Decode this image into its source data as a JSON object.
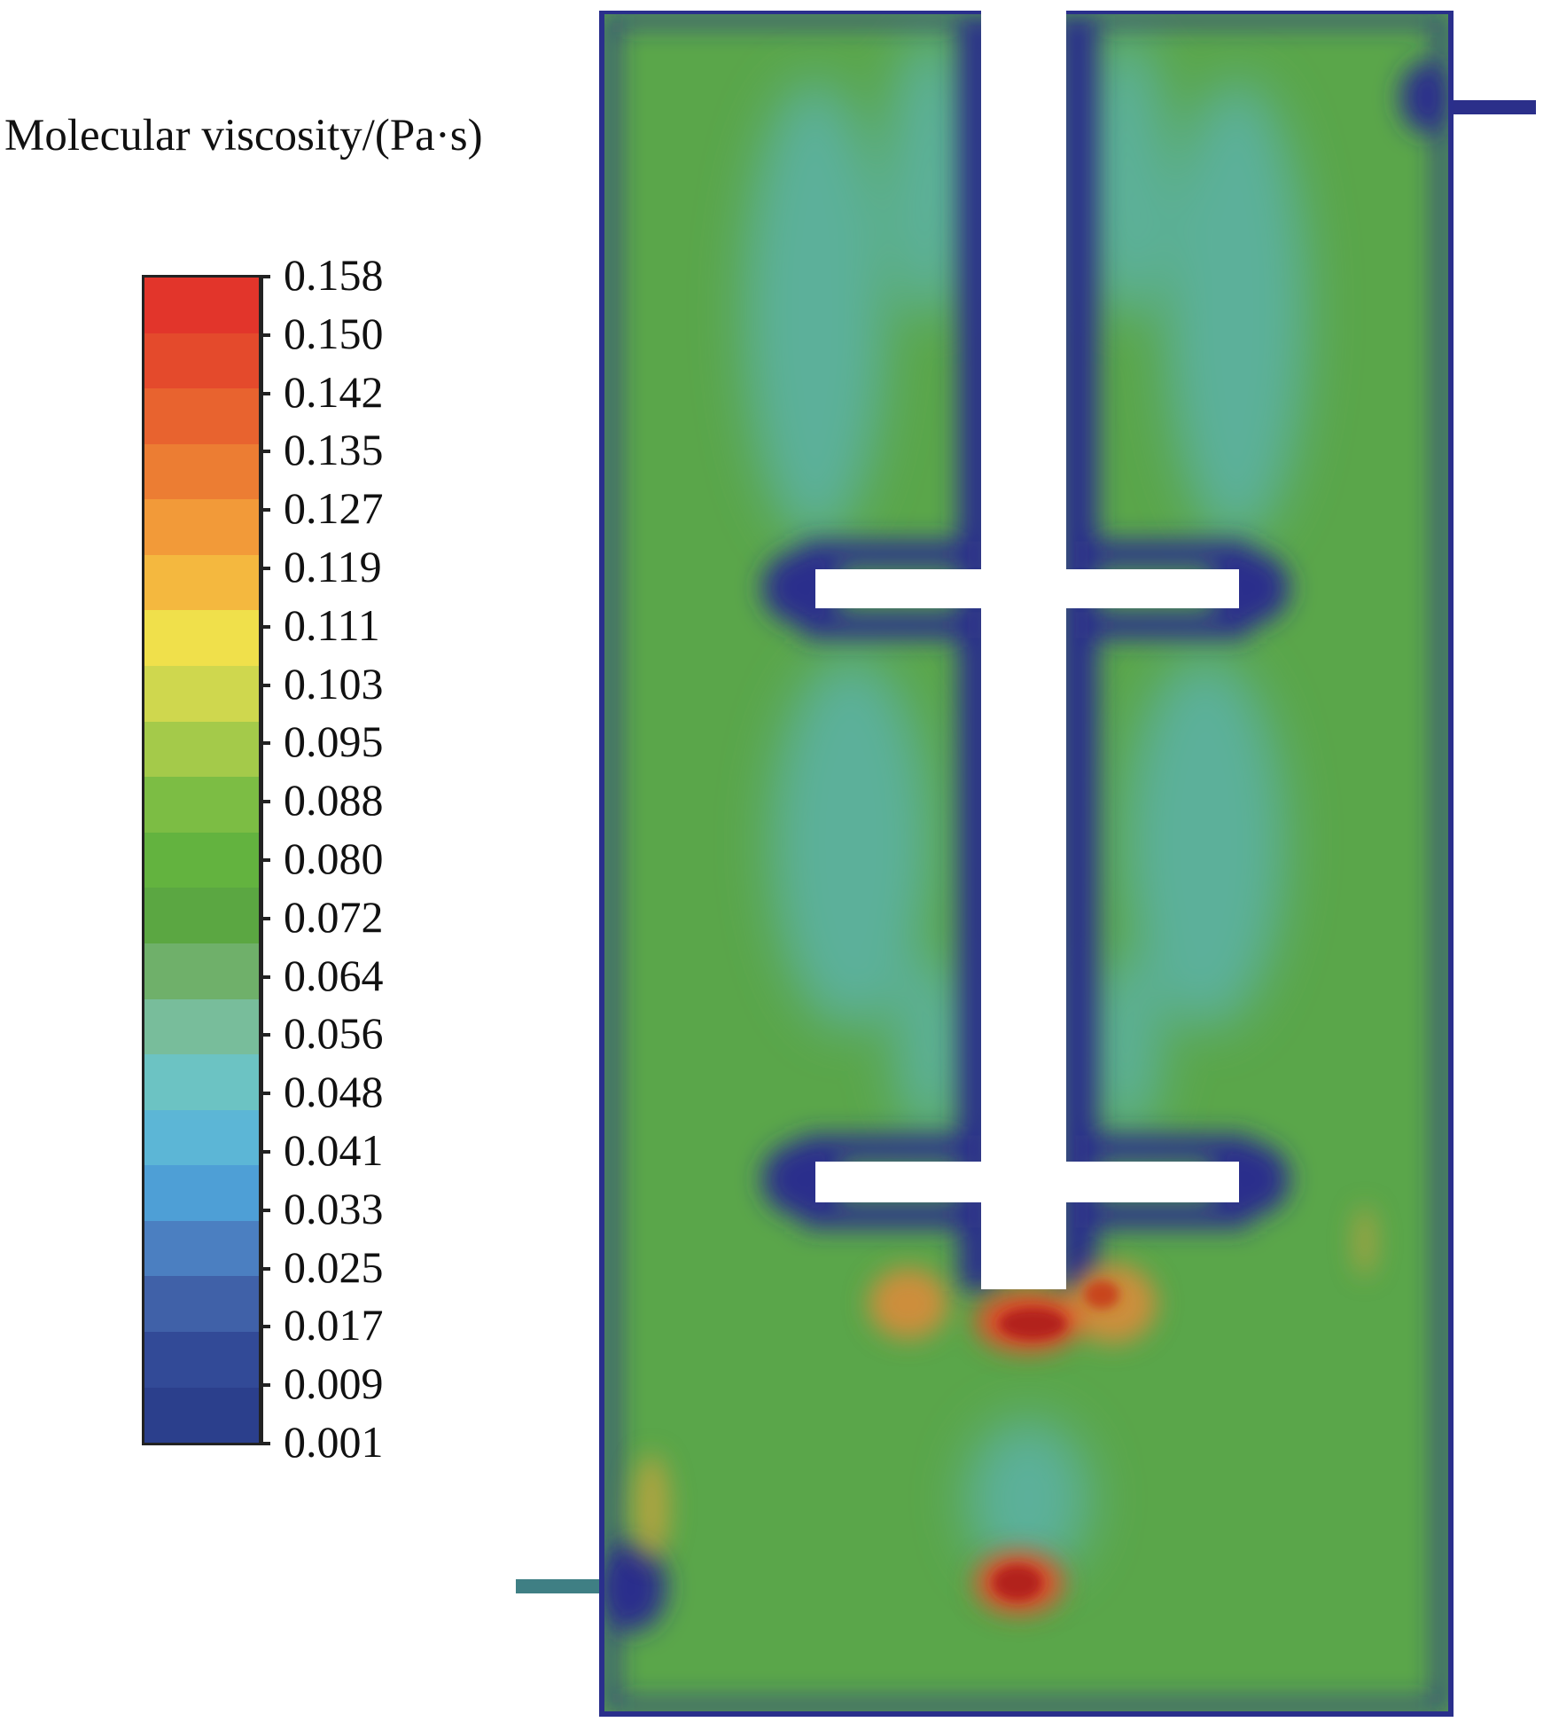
{
  "legend": {
    "title": "Molecular viscosity/(Pa·s)",
    "ticks": [
      "0.158",
      "0.150",
      "0.142",
      "0.135",
      "0.127",
      "0.119",
      "0.111",
      "0.103",
      "0.095",
      "0.088",
      "0.080",
      "0.072",
      "0.064",
      "0.056",
      "0.048",
      "0.041",
      "0.033",
      "0.025",
      "0.017",
      "0.009",
      "0.001"
    ],
    "colors_top_to_bottom": [
      "#e2352b",
      "#e44a2c",
      "#e8632f",
      "#ec7d33",
      "#f29a39",
      "#f4b83f",
      "#f0e04b",
      "#cfd74e",
      "#a4ca4a",
      "#7cbd44",
      "#63b33f",
      "#5ba742",
      "#6fb06a",
      "#78bd9b",
      "#6cc3c3",
      "#5cb6d6",
      "#4e9fd6",
      "#4b7fc1",
      "#4061a8",
      "#324a97",
      "#2b3f8c"
    ]
  },
  "diagram": {
    "field_colors": {
      "background": "#5aa64a",
      "teal": "#5bb09a",
      "low": "#2a2f8c",
      "hot": "#e0502b",
      "peak": "#b2201c"
    }
  }
}
